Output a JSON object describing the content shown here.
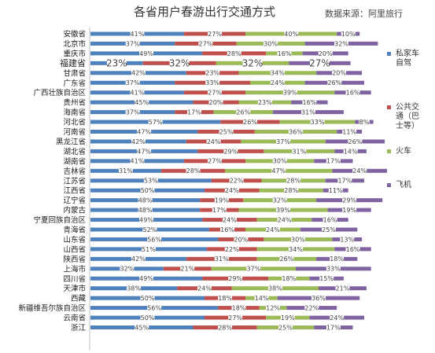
{
  "title": "各省用户春游出行交通方式",
  "source": "数据来源：阿里旅行",
  "chart_data": {
    "type": "bar",
    "stacked": true,
    "percent": true,
    "orientation": "horizontal",
    "categories": [
      "安徽省",
      "北京市",
      "重庆市",
      "福建省",
      "甘肃省",
      "广东省",
      "广西壮族自治区",
      "贵州省",
      "海南省",
      "河北省",
      "河南省",
      "黑龙江省",
      "湖北省",
      "湖南省",
      "吉林省",
      "江苏省",
      "江西省",
      "辽宁省",
      "内蒙古",
      "宁夏回族自治区",
      "青海省",
      "山东省",
      "山西省",
      "陕西省",
      "上海市",
      "四川省",
      "天津市",
      "西藏",
      "新疆维吾尔族自治区",
      "云南省",
      "浙江"
    ],
    "series": [
      {
        "name": "私家车自驾",
        "color": "#4F81BD",
        "values": [
          41,
          37,
          49,
          23,
          42,
          37,
          41,
          45,
          37,
          57,
          47,
          42,
          47,
          41,
          31,
          53,
          50,
          48,
          48,
          49,
          52,
          56,
          51,
          42,
          32,
          49,
          38,
          50,
          56,
          50,
          45
        ]
      },
      {
        "name": "公共交通（巴士等）",
        "color": "#C0504D",
        "values": [
          27,
          27,
          28,
          32,
          23,
          33,
          27,
          20,
          17,
          26,
          25,
          24,
          29,
          27,
          28,
          22,
          24,
          19,
          17,
          24,
          16,
          20,
          22,
          31,
          21,
          29,
          24,
          18,
          18,
          27,
          28
        ]
      },
      {
        "name": "火车",
        "color": "#9BBB59",
        "values": [
          40,
          30,
          16,
          32,
          34,
          24,
          39,
          23,
          26,
          33,
          36,
          37,
          31,
          30,
          47,
          28,
          28,
          32,
          39,
          24,
          24,
          30,
          34,
          26,
          37,
          18,
          38,
          14,
          12,
          19,
          25
        ]
      },
      {
        "name": "飞机",
        "color": "#8064A2",
        "values": [
          10,
          32,
          20,
          27,
          20,
          26,
          16,
          16,
          31,
          8,
          11,
          26,
          14,
          17,
          24,
          17,
          11,
          29,
          19,
          16,
          25,
          13,
          16,
          18,
          33,
          15,
          21,
          36,
          22,
          24,
          17
        ]
      }
    ],
    "legend_position": "right",
    "grid": false
  }
}
